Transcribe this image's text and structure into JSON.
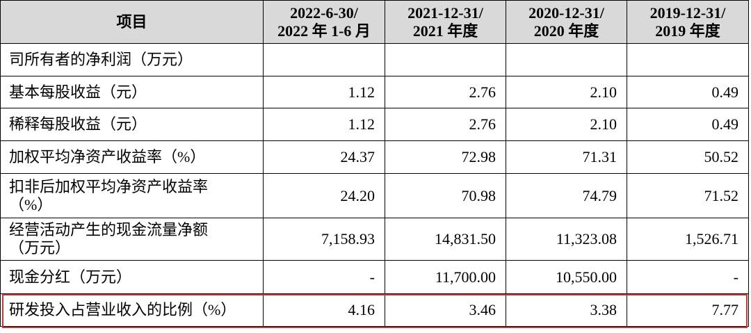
{
  "table": {
    "header": [
      [
        "项目"
      ],
      [
        "2022-6-30/",
        "2022 年 1-6 月"
      ],
      [
        "2021-12-31/",
        "2021 年度"
      ],
      [
        "2020-12-31/",
        "2020 年度"
      ],
      [
        "2019-12-31/",
        "2019 年度"
      ]
    ],
    "rows": [
      {
        "label": [
          "司所有者的净利润（万元）"
        ],
        "values": []
      },
      {
        "label": [
          "基本每股收益（元）"
        ],
        "values": [
          "1.12",
          "2.76",
          "2.10",
          "0.49"
        ]
      },
      {
        "label": [
          "稀释每股收益（元）"
        ],
        "values": [
          "1.12",
          "2.76",
          "2.10",
          "0.49"
        ]
      },
      {
        "label": [
          "加权平均净资产收益率（%）"
        ],
        "values": [
          "24.37",
          "72.98",
          "71.31",
          "50.52"
        ]
      },
      {
        "label": [
          "扣非后加权平均净资产收益率",
          "（%）"
        ],
        "values": [
          "24.20",
          "70.98",
          "74.79",
          "71.52"
        ]
      },
      {
        "label": [
          "经营活动产生的现金流量净额",
          "（万元）"
        ],
        "values": [
          "7,158.93",
          "14,831.50",
          "11,323.08",
          "1,526.71"
        ]
      },
      {
        "label": [
          "现金分红（万元）"
        ],
        "values": [
          "-",
          "11,700.00",
          "10,550.00",
          "-"
        ]
      },
      {
        "label": [
          "研发投入占营业收入的比例（%）"
        ],
        "values": [
          "4.16",
          "3.46",
          "3.38",
          "7.77"
        ]
      }
    ],
    "highlight_row": 7
  }
}
